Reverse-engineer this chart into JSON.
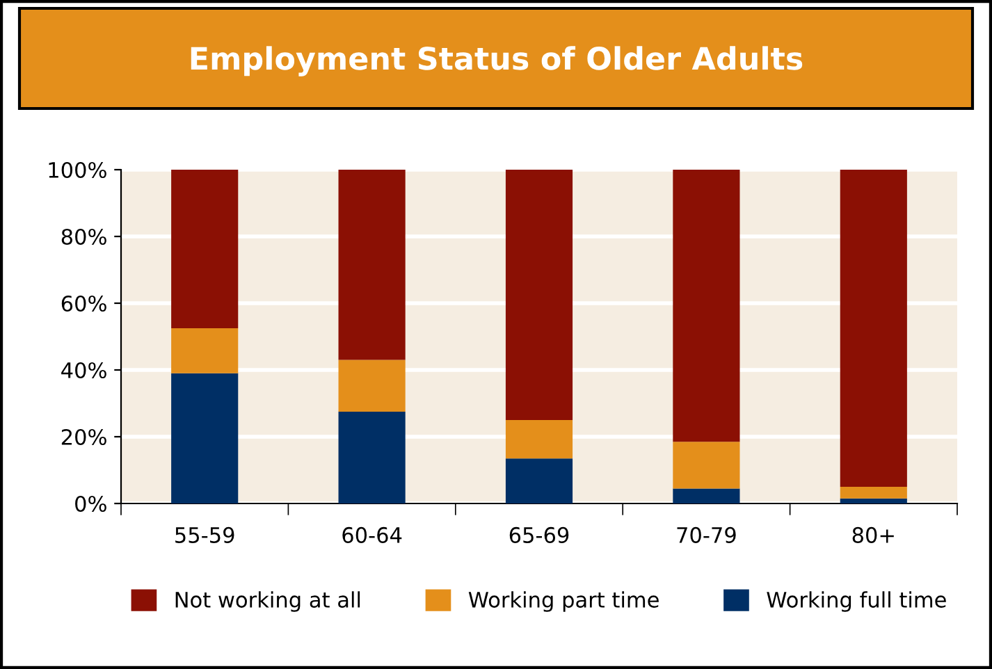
{
  "chart_data": {
    "type": "bar",
    "title": "Employment Status of Older Adults",
    "stacked": true,
    "categories": [
      "55-59",
      "60-64",
      "65-69",
      "70-79",
      "80+"
    ],
    "series": [
      {
        "name": "Working full time",
        "color": "#002f65",
        "values": [
          39,
          27.5,
          13.5,
          4.5,
          1.5
        ]
      },
      {
        "name": "Working part time",
        "color": "#e48f1b",
        "values": [
          13.5,
          15.5,
          11.5,
          14,
          3.5
        ]
      },
      {
        "name": "Not working at all",
        "color": "#8b1004",
        "values": [
          47.5,
          57,
          75,
          81.5,
          95
        ]
      }
    ],
    "ylim": [
      0,
      100
    ],
    "yticks": [
      {
        "value": 0,
        "label": "0%"
      },
      {
        "value": 20,
        "label": "20%"
      },
      {
        "value": 40,
        "label": "40%"
      },
      {
        "value": 60,
        "label": "60%"
      },
      {
        "value": 80,
        "label": "80%"
      },
      {
        "value": 100,
        "label": "100%"
      }
    ],
    "grid": "y",
    "legend": "bottom"
  }
}
